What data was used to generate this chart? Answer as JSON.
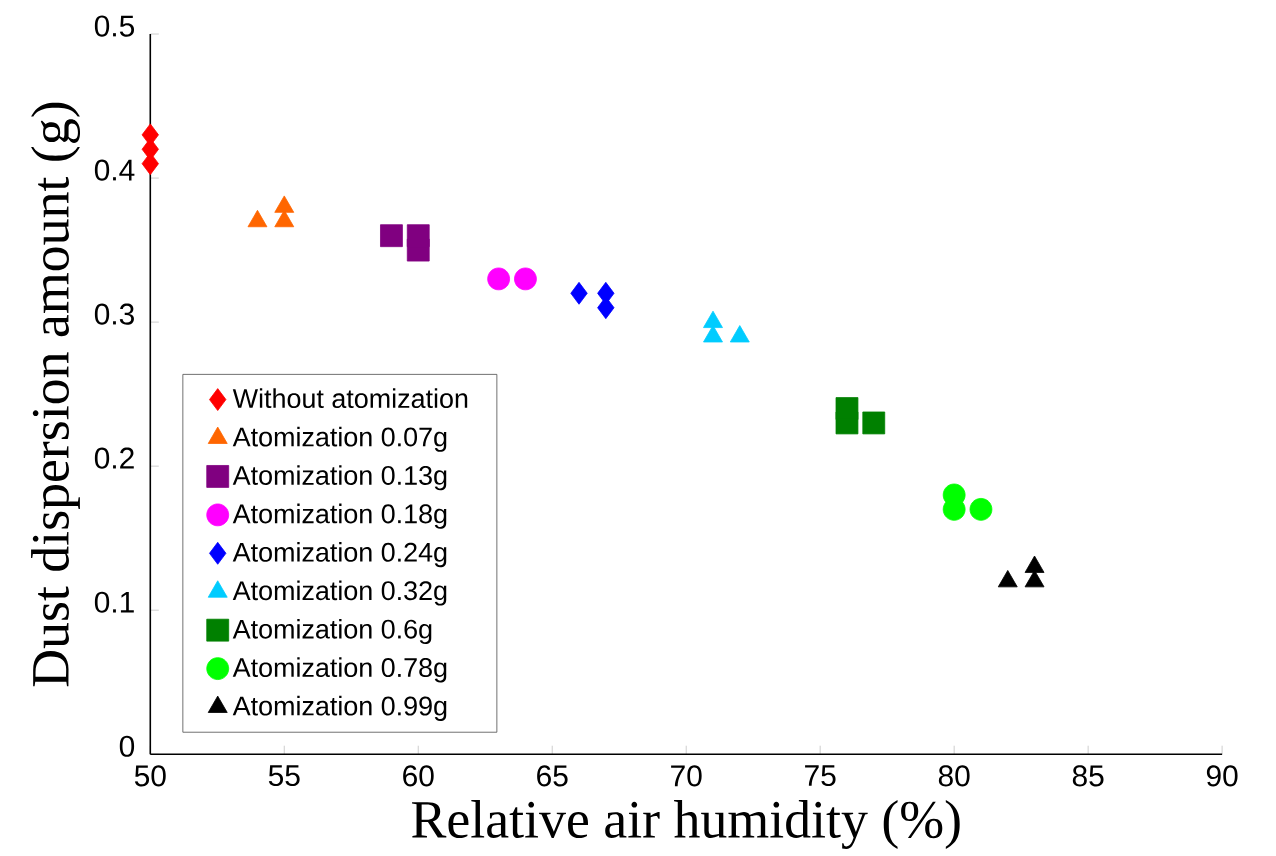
{
  "chart_data": {
    "type": "scatter",
    "xlabel": "Relative air humidity (%)",
    "ylabel": "Dust dispersion amount (g)",
    "xlim": [
      50,
      90
    ],
    "xticks": [
      50,
      55,
      60,
      65,
      70,
      75,
      80,
      85,
      90
    ],
    "ylim": [
      0,
      0.5
    ],
    "yticks": [
      0,
      0.1,
      0.2,
      0.3,
      0.4,
      0.5
    ],
    "grid": false,
    "legend": "left",
    "series": [
      {
        "name": "Without atomization",
        "color": "#ff0000",
        "marker": "diamond",
        "x": [
          50,
          50,
          50
        ],
        "values": [
          0.41,
          0.42,
          0.43
        ]
      },
      {
        "name": "Atomization 0.07g",
        "color": "#ff6600",
        "marker": "triangle",
        "x": [
          54,
          55,
          55
        ],
        "values": [
          0.37,
          0.37,
          0.38
        ]
      },
      {
        "name": "Atomization 0.13g",
        "color": "#800080",
        "marker": "square",
        "x": [
          59,
          60,
          60
        ],
        "values": [
          0.36,
          0.35,
          0.36
        ]
      },
      {
        "name": "Atomization 0.18g",
        "color": "#ff00ff",
        "marker": "circle",
        "x": [
          63,
          64
        ],
        "values": [
          0.33,
          0.33
        ]
      },
      {
        "name": "Atomization 0.24g",
        "color": "#0000ff",
        "marker": "diamond",
        "x": [
          66,
          67,
          67
        ],
        "values": [
          0.32,
          0.31,
          0.32
        ]
      },
      {
        "name": "Atomization 0.32g",
        "color": "#00ccff",
        "marker": "triangle",
        "x": [
          71,
          71,
          72
        ],
        "values": [
          0.29,
          0.3,
          0.29
        ]
      },
      {
        "name": "Atomization 0.6g",
        "color": "#008000",
        "marker": "square",
        "x": [
          76,
          76,
          77
        ],
        "values": [
          0.23,
          0.24,
          0.23
        ]
      },
      {
        "name": "Atomization 0.78g",
        "color": "#00ff00",
        "marker": "circle",
        "x": [
          80,
          80,
          81
        ],
        "values": [
          0.17,
          0.18,
          0.17
        ]
      },
      {
        "name": "Atomization 0.99g",
        "color": "#000000",
        "marker": "triangle",
        "x": [
          82,
          83,
          83
        ],
        "values": [
          0.12,
          0.12,
          0.13
        ]
      }
    ]
  }
}
